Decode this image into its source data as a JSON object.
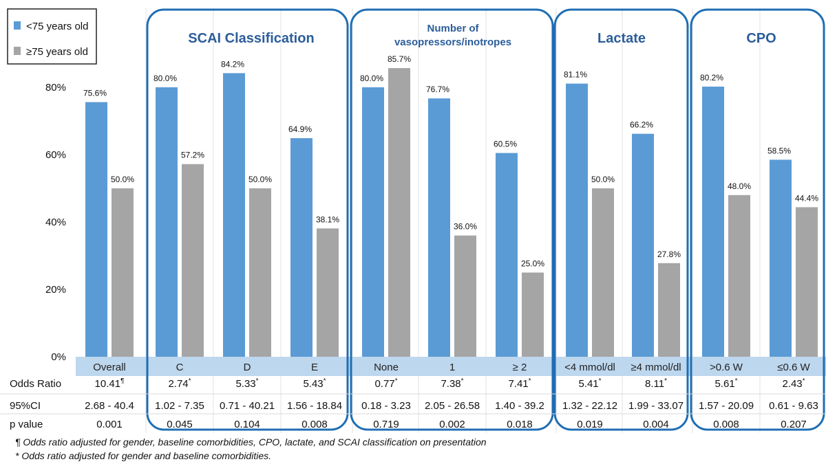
{
  "chart_data": {
    "type": "bar",
    "ylim": [
      0,
      80
    ],
    "yticks": [
      "0%",
      "20%",
      "40%",
      "60%",
      "80%"
    ],
    "series": [
      {
        "name": "<75 years old",
        "color": "#5b9bd5"
      },
      {
        "name": "≥75 years old",
        "color": "#a5a5a5"
      }
    ],
    "groups": [
      {
        "title": "",
        "categories": [
          "Overall"
        ]
      },
      {
        "title": "SCAI Classification",
        "categories": [
          "C",
          "D",
          "E"
        ]
      },
      {
        "title": "Number of\nvasopressors/inotropes",
        "categories": [
          "None",
          "1",
          "≥ 2"
        ]
      },
      {
        "title": "Lactate",
        "categories": [
          "<4 mmol/dl",
          "≥4  mmol/dl"
        ]
      },
      {
        "title": "CPO",
        "categories": [
          ">0.6 W",
          "≤0.6 W"
        ]
      }
    ],
    "categories": [
      "Overall",
      "C",
      "D",
      "E",
      "None",
      "1",
      "≥ 2",
      "<4 mmol/dl",
      "≥4  mmol/dl",
      ">0.6 W",
      "≤0.6 W"
    ],
    "values_under75": [
      75.6,
      80.0,
      84.2,
      64.9,
      80.0,
      76.7,
      60.5,
      81.1,
      66.2,
      80.2,
      58.5
    ],
    "values_75plus": [
      50.0,
      57.2,
      50.0,
      38.1,
      85.7,
      36.0,
      25.0,
      50.0,
      27.8,
      48.0,
      44.4
    ],
    "labels_under75": [
      "75.6%",
      "80.0%",
      "84.2%",
      "64.9%",
      "80.0%",
      "76.7%",
      "60.5%",
      "81.1%",
      "66.2%",
      "80.2%",
      "58.5%"
    ],
    "labels_75plus": [
      "50.0%",
      "57.2%",
      "50.0%",
      "38.1%",
      "85.7%",
      "36.0%",
      "25.0%",
      "50.0%",
      "27.8%",
      "48.0%",
      "44.4%"
    ],
    "table": {
      "rows": [
        {
          "label": "Odds Ratio",
          "values": [
            "10.41",
            "2.74",
            "5.33",
            "5.43",
            "0.77",
            "7.38",
            "7.41",
            "5.41",
            "8.11",
            "5.61",
            "2.43"
          ],
          "marks": [
            "¶",
            "*",
            "*",
            "*",
            "*",
            "*",
            "*",
            "*",
            "*",
            "*",
            "*"
          ]
        },
        {
          "label": "95%CI",
          "values": [
            "2.68 - 40.4",
            "1.02 - 7.35",
            "0.71 - 40.21",
            "1.56 - 18.84",
            "0.18 - 3.23",
            "2.05 - 26.58",
            "1.40 - 39.2",
            "1.32 - 22.12",
            "1.99 - 33.07",
            "1.57 - 20.09",
            "0.61 - 9.63"
          ]
        },
        {
          "label": "p value",
          "values": [
            "0.001",
            "0.045",
            "0.104",
            "0.008",
            "0.719",
            "0.002",
            "0.018",
            "0.019",
            "0.004",
            "0.008",
            "0.207"
          ]
        }
      ]
    },
    "footnotes": [
      "¶ Odds ratio adjusted for gender, baseline comorbidities, CPO, lactate, and SCAI classification on presentation",
      "* Odds ratio adjusted for gender and baseline comorbidities."
    ],
    "grid": true,
    "legend_position": "top-left"
  }
}
